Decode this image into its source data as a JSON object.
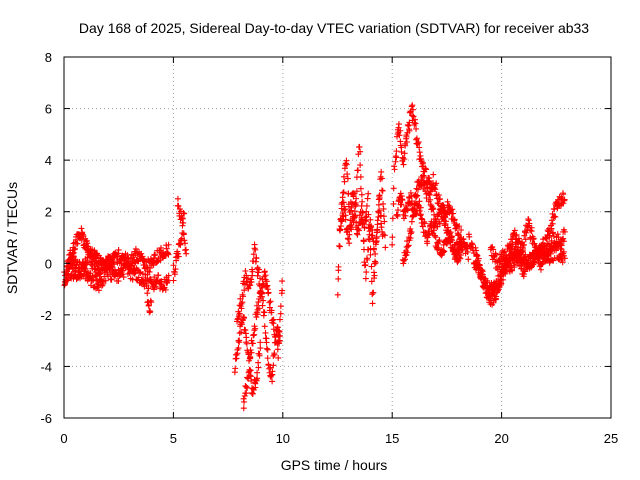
{
  "chart_data": {
    "type": "scatter",
    "title": "Day 168 of 2025, Sidereal Day-to-day VTEC variation (SDTVAR) for receiver ab33",
    "xlabel": "GPS time / hours",
    "ylabel": "SDTVAR / TECUs",
    "xlim": [
      0,
      25
    ],
    "ylim": [
      -6,
      8
    ],
    "xticks": [
      0,
      5,
      10,
      15,
      20,
      25
    ],
    "yticks": [
      -6,
      -4,
      -2,
      0,
      2,
      4,
      6,
      8
    ],
    "xtick_labels": [
      "0",
      "5",
      "10",
      "15",
      "20",
      "25"
    ],
    "ytick_labels": [
      "-6",
      "-4",
      "-2",
      "0",
      "2",
      "4",
      "6",
      "8"
    ],
    "grid": true,
    "marker": "+",
    "color": "#ff0000",
    "series": [
      {
        "name": "SDTVAR",
        "trends": [
          {
            "x": [
              0.0,
              0.2,
              0.4,
              0.6,
              0.8,
              1.0,
              1.2,
              1.5,
              1.8,
              2.1,
              2.4,
              2.7,
              3.0,
              3.3,
              3.6,
              3.9,
              4.2,
              4.5,
              4.8
            ],
            "y": [
              -1.0,
              0.0,
              0.5,
              1.0,
              1.1,
              0.7,
              0.2,
              -0.3,
              -0.1,
              0.1,
              0.3,
              0.2,
              0.0,
              0.3,
              0.1,
              -0.1,
              0.2,
              0.4,
              0.6
            ]
          },
          {
            "x": [
              0.0,
              0.3,
              0.6,
              0.9,
              1.2,
              1.6,
              2.0,
              2.4,
              2.8,
              3.2,
              3.6,
              4.0,
              4.3,
              4.6,
              4.8
            ],
            "y": [
              -0.6,
              -0.3,
              -0.5,
              -0.2,
              -0.6,
              -0.8,
              -0.3,
              -0.5,
              -0.2,
              -0.4,
              -0.6,
              -0.8,
              -0.7,
              -0.9,
              -0.5
            ]
          },
          {
            "x": [
              0.3,
              0.5,
              0.8,
              1.1,
              1.4,
              1.7,
              2.0,
              2.3
            ],
            "y": [
              0.2,
              0.0,
              -0.3,
              0.4,
              0.3,
              -0.1,
              0.0,
              0.2
            ]
          },
          {
            "x": [
              3.8,
              3.9,
              4.0
            ],
            "y": [
              -1.2,
              -1.8,
              -1.5
            ]
          },
          {
            "x": [
              5.0,
              5.1,
              5.2,
              5.3,
              5.4,
              5.5
            ],
            "y": [
              -0.4,
              -0.1,
              0.3,
              0.8,
              1.3,
              2.4
            ]
          },
          {
            "x": [
              5.2,
              5.3,
              5.4,
              5.5,
              5.6
            ],
            "y": [
              2.3,
              2.0,
              1.6,
              1.0,
              0.2
            ]
          },
          {
            "x": [
              7.8,
              8.0,
              8.2,
              8.4,
              8.6,
              8.8,
              9.0
            ],
            "y": [
              -4.0,
              -3.0,
              -2.0,
              -3.5,
              -5.0,
              -4.5,
              -3.0
            ]
          },
          {
            "x": [
              7.9,
              8.1,
              8.3,
              8.5,
              8.7,
              8.9,
              9.1,
              9.3,
              9.5,
              9.7,
              9.9
            ],
            "y": [
              -2.0,
              -1.5,
              -0.5,
              -1.0,
              0.5,
              -0.5,
              -1.5,
              -3.5,
              -4.5,
              -2.5,
              -3.0
            ]
          },
          {
            "x": [
              8.2,
              8.4,
              8.6,
              8.8,
              9.0,
              9.2,
              9.4,
              9.6,
              9.8,
              10.0
            ],
            "y": [
              -5.5,
              -4.5,
              -3.0,
              -2.0,
              -1.0,
              -0.5,
              -1.5,
              -2.5,
              -3.5,
              -0.5
            ]
          },
          {
            "x": [
              12.5,
              12.7,
              12.9,
              13.1,
              13.3,
              13.5,
              13.7,
              13.9,
              14.1,
              14.3,
              14.5,
              14.7
            ],
            "y": [
              -1.0,
              2.5,
              3.8,
              1.5,
              2.0,
              4.5,
              1.0,
              2.5,
              -1.5,
              1.0,
              3.5,
              0.5
            ]
          },
          {
            "x": [
              12.6,
              12.8,
              13.0,
              13.2,
              13.4,
              13.6,
              13.8,
              14.0,
              14.2,
              14.4,
              14.6
            ],
            "y": [
              1.5,
              2.2,
              0.8,
              3.0,
              1.2,
              2.0,
              -0.5,
              1.8,
              0.2,
              2.5,
              1.0
            ]
          },
          {
            "x": [
              15.0,
              15.1,
              15.3,
              15.5,
              15.7,
              15.9,
              16.1,
              16.3,
              16.5,
              16.7,
              16.9,
              17.1,
              17.3,
              17.6,
              17.9,
              18.2,
              18.5
            ],
            "y": [
              0.5,
              3.5,
              5.5,
              4.0,
              5.0,
              6.0,
              5.0,
              4.0,
              3.5,
              3.0,
              3.2,
              2.5,
              2.0,
              1.0,
              0.5,
              0.8,
              0.3
            ]
          },
          {
            "x": [
              15.2,
              15.4,
              15.6,
              15.8,
              16.0,
              16.2,
              16.4,
              16.6,
              16.8,
              17.0,
              17.3,
              17.6,
              17.9,
              18.2
            ],
            "y": [
              2.0,
              2.5,
              1.8,
              2.6,
              2.0,
              2.3,
              1.6,
              1.0,
              1.5,
              0.8,
              0.5,
              1.2,
              0.2,
              0.5
            ]
          },
          {
            "x": [
              15.5,
              15.8,
              16.1,
              16.4,
              16.7,
              17.0,
              17.3,
              17.6,
              17.9,
              18.2
            ],
            "y": [
              0.0,
              1.0,
              2.8,
              3.2,
              2.5,
              1.5,
              2.0,
              2.2,
              1.5,
              1.0
            ]
          },
          {
            "x": [
              18.5,
              18.8,
              19.1,
              19.4,
              19.7,
              20.0,
              20.3,
              20.6,
              20.9,
              21.2,
              21.5,
              21.8,
              22.1,
              22.4,
              22.7,
              22.9
            ],
            "y": [
              1.0,
              0.0,
              -0.5,
              -1.0,
              -1.0,
              -0.5,
              0.0,
              0.5,
              0.3,
              0.0,
              0.2,
              0.5,
              1.0,
              2.0,
              2.5,
              2.5
            ]
          },
          {
            "x": [
              18.8,
              19.1,
              19.4,
              19.7,
              20.0,
              20.3,
              20.6,
              20.9,
              21.2,
              21.5,
              21.8,
              22.1,
              22.4,
              22.7,
              22.9
            ],
            "y": [
              0.5,
              -0.5,
              -1.5,
              -1.2,
              -0.5,
              0.5,
              1.0,
              0.5,
              1.5,
              0.8,
              0.0,
              0.5,
              1.0,
              0.8,
              1.2
            ]
          },
          {
            "x": [
              19.5,
              19.8,
              20.1,
              20.4,
              20.7,
              21.0,
              21.3,
              21.6,
              21.9,
              22.2,
              22.5,
              22.8,
              22.9
            ],
            "y": [
              0.5,
              0.0,
              0.3,
              -0.2,
              0.2,
              -0.3,
              0.1,
              0.3,
              0.5,
              0.2,
              0.5,
              0.3,
              0.3
            ]
          }
        ]
      }
    ]
  }
}
